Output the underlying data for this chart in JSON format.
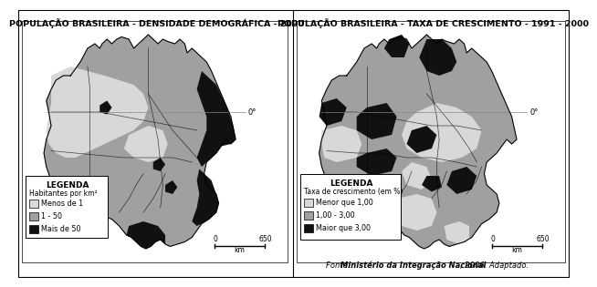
{
  "title_left": "POPULAÇÃO BRASILEIRA - DENSIDADE DEMOGRÁFICA - 2000",
  "title_right": "POPULAÇÃO BRASILEIRA - TAXA DE CRESCIMENTO - 1991 - 2000",
  "source_prefix": "Fonte: ",
  "source_bold": "Ministério da Integração Nacional",
  "source_suffix": ", 2006. Adaptado.",
  "legend_left_title": "LEGENDA",
  "legend_left_subtitle": "Habitantes por km²",
  "legend_left_items": [
    "Menos de 1",
    "1 - 50",
    "Mais de 50"
  ],
  "legend_left_colors": [
    "#d8d8d8",
    "#a0a0a0",
    "#111111"
  ],
  "legend_right_title": "LEGENDA",
  "legend_right_subtitle": "Taxa de crescimento (em %)",
  "legend_right_items": [
    "Menor que 1,00",
    "1,00 - 3,00",
    "Maior que 3,00"
  ],
  "legend_right_colors": [
    "#d8d8d8",
    "#a0a0a0",
    "#111111"
  ],
  "equator_label": "0°",
  "bg_color": "#ffffff",
  "color_light": "#d8d8d8",
  "color_mid": "#a0a0a0",
  "color_dark": "#111111",
  "color_mid2": "#b8b8b8"
}
